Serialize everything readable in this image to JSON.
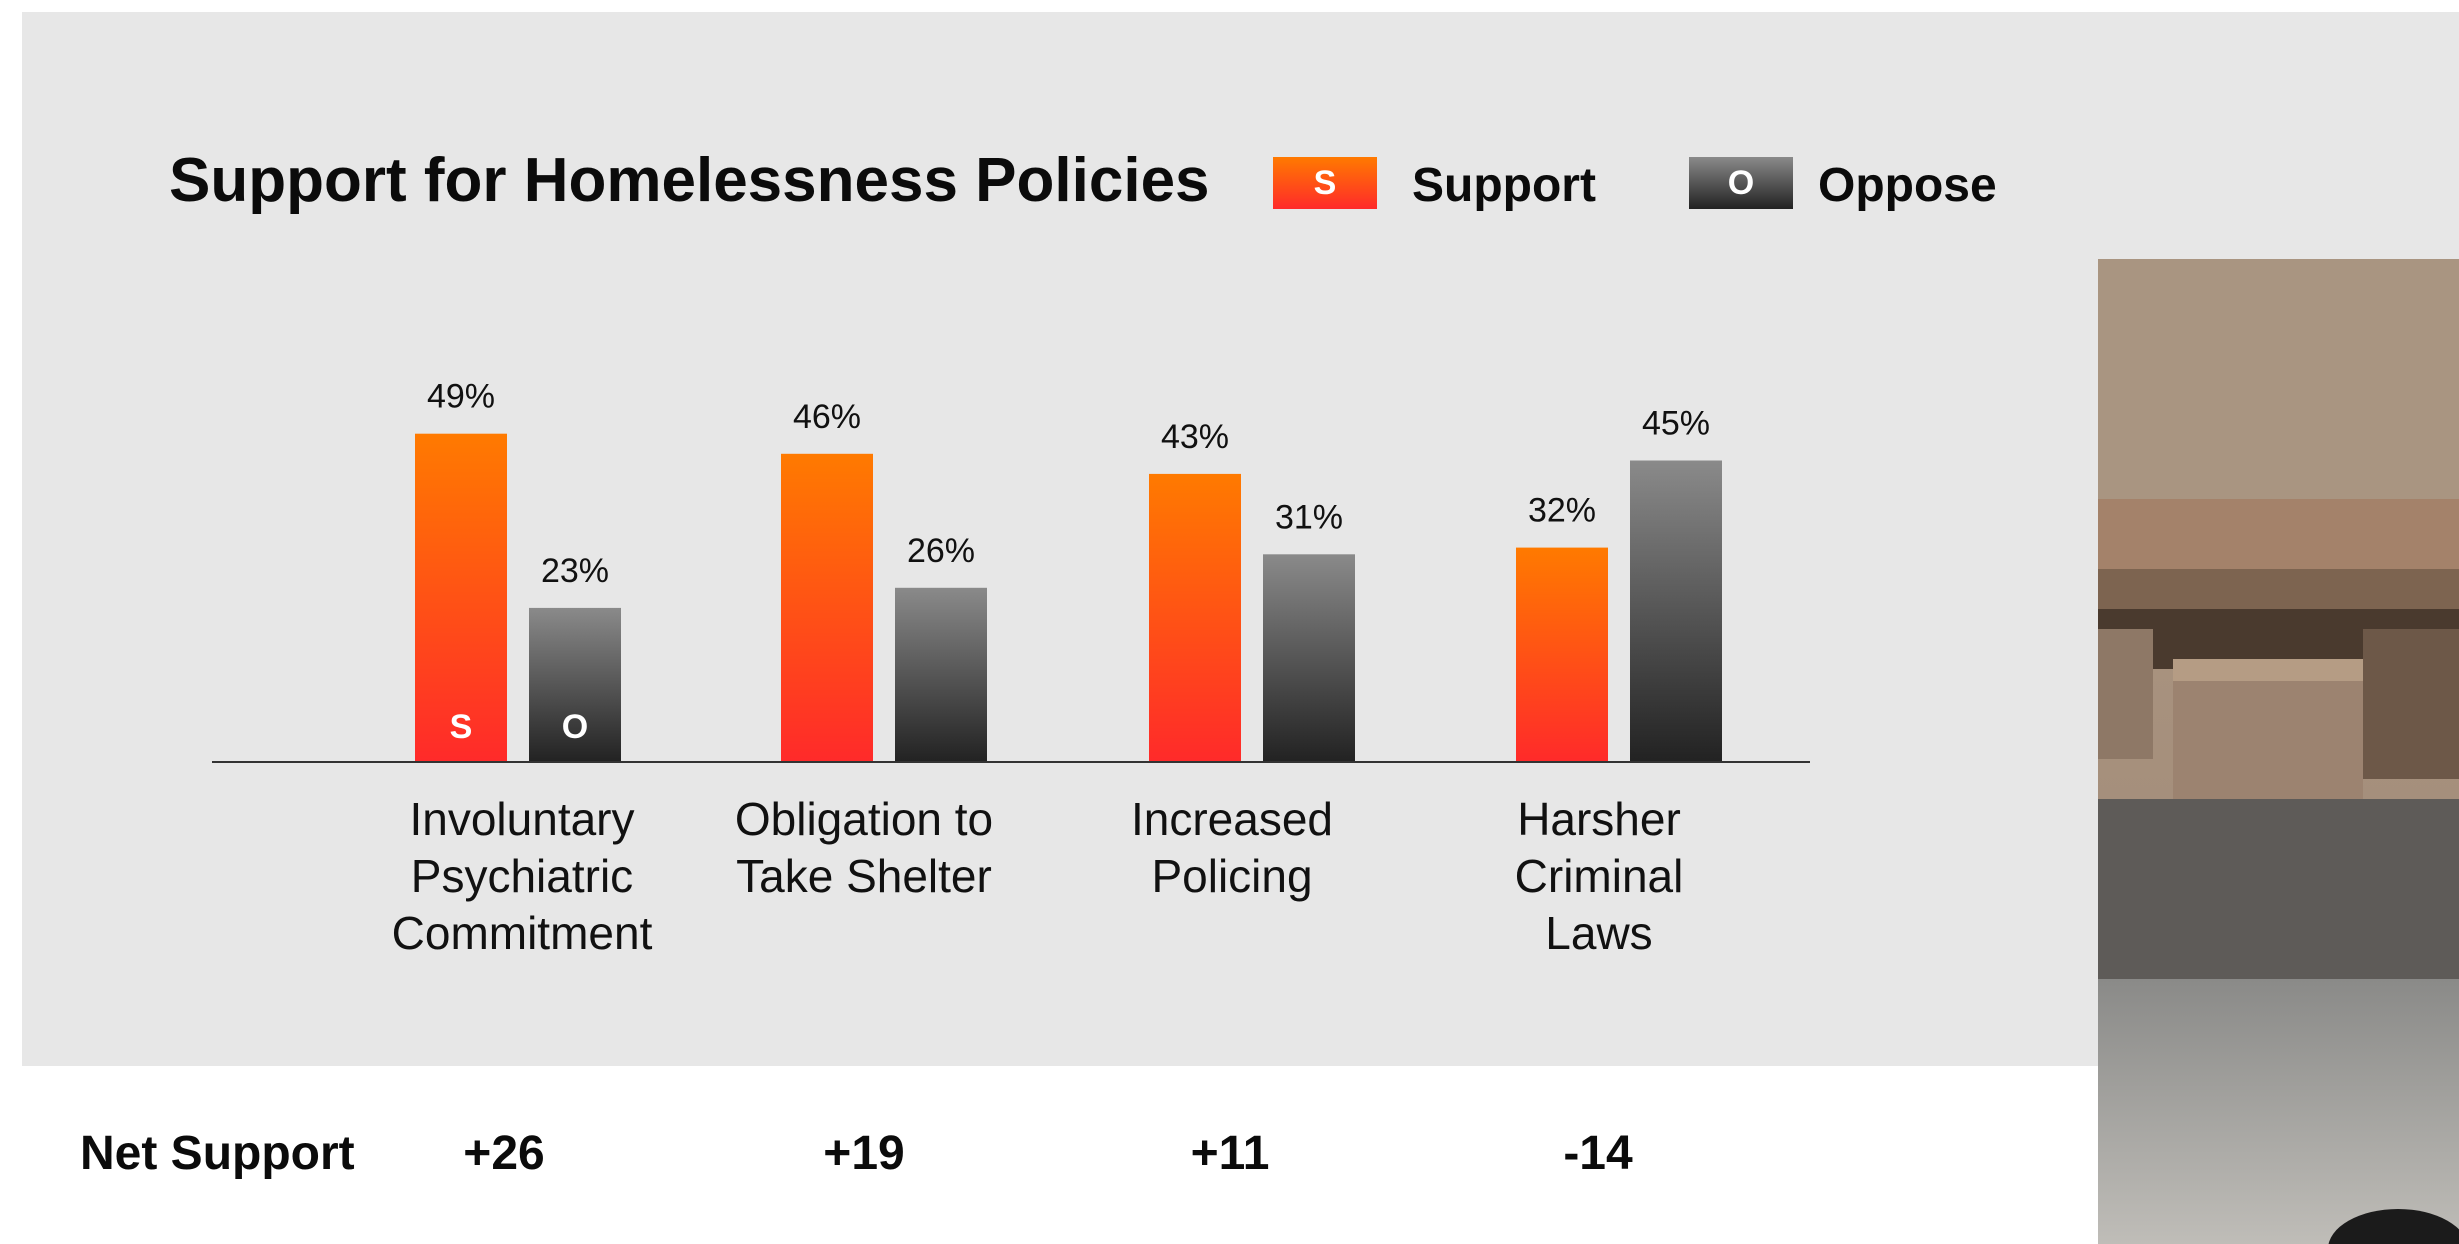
{
  "colors": {
    "support_top": "#ff7a00",
    "support_bottom": "#ff2a2a",
    "oppose_top": "#8a8a8a",
    "oppose_bottom": "#222222",
    "background": "#e7e7e7"
  },
  "legend": {
    "support_marker": "S",
    "support_label": "Support",
    "oppose_marker": "O",
    "oppose_label": "Oppose"
  },
  "net": {
    "label": "Net Support",
    "values": [
      "+26",
      "+19",
      "+11",
      "-14"
    ]
  },
  "chart_data": {
    "type": "bar",
    "title": "Support for Homelessness Policies",
    "categories": [
      [
        "Involuntary",
        "Psychiatric",
        "Commitment"
      ],
      [
        "Obligation to",
        "Take Shelter"
      ],
      [
        "Increased",
        "Policing"
      ],
      [
        "Harsher",
        "Criminal",
        "Laws"
      ]
    ],
    "series": [
      {
        "name": "Support",
        "marker": "S",
        "values": [
          49,
          46,
          43,
          32
        ],
        "labels": [
          "49%",
          "46%",
          "43%",
          "32%"
        ]
      },
      {
        "name": "Oppose",
        "marker": "O",
        "values": [
          23,
          26,
          31,
          45
        ],
        "labels": [
          "23%",
          "26%",
          "31%",
          "45%"
        ]
      }
    ],
    "ylim": [
      0,
      50
    ],
    "legend_position": "top",
    "grid": false
  }
}
